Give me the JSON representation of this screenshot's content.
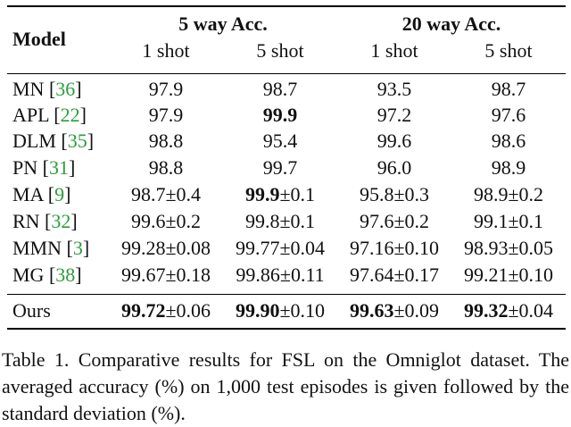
{
  "table": {
    "header": {
      "model": "Model",
      "groups": [
        "5 way Acc.",
        "20 way Acc."
      ],
      "shots": [
        "1 shot",
        "5 shot",
        "1 shot",
        "5 shot"
      ]
    },
    "rows": [
      {
        "model": [
          "MN [",
          "36",
          "]"
        ],
        "cells": [
          {
            "text": "97.9"
          },
          {
            "text": "98.7"
          },
          {
            "text": "93.5"
          },
          {
            "text": "98.7"
          }
        ]
      },
      {
        "model": [
          "APL [",
          "22",
          "]"
        ],
        "cells": [
          {
            "text": "97.9"
          },
          {
            "bold": "99.9"
          },
          {
            "text": "97.2"
          },
          {
            "text": "97.6"
          }
        ]
      },
      {
        "model": [
          "DLM [",
          "35",
          "]"
        ],
        "cells": [
          {
            "text": "98.8"
          },
          {
            "text": "95.4"
          },
          {
            "text": "99.6"
          },
          {
            "text": "98.6"
          }
        ]
      },
      {
        "model": [
          "PN [",
          "31",
          "]"
        ],
        "cells": [
          {
            "text": "98.8"
          },
          {
            "text": "99.7"
          },
          {
            "text": "96.0"
          },
          {
            "text": "98.9"
          }
        ]
      },
      {
        "model": [
          "MA [",
          "9",
          "]"
        ],
        "cells": [
          {
            "text": "98.7±0.4"
          },
          {
            "bold": "99.9",
            "text": "±0.1"
          },
          {
            "text": "95.8±0.3"
          },
          {
            "text": "98.9±0.2"
          }
        ]
      },
      {
        "model": [
          "RN [",
          "32",
          "]"
        ],
        "cells": [
          {
            "text": "99.6±0.2"
          },
          {
            "text": "99.8±0.1"
          },
          {
            "text": "97.6±0.2"
          },
          {
            "text": "99.1±0.1"
          }
        ]
      },
      {
        "model": [
          "MMN [",
          "3",
          "]"
        ],
        "cells": [
          {
            "text": "99.28±0.08"
          },
          {
            "text": "99.77±0.04"
          },
          {
            "text": "97.16±0.10"
          },
          {
            "text": "98.93±0.05"
          }
        ]
      },
      {
        "model": [
          "MG [",
          "38",
          "]"
        ],
        "cells": [
          {
            "text": "99.67±0.18"
          },
          {
            "text": "99.86±0.11"
          },
          {
            "text": "97.64±0.17"
          },
          {
            "text": "99.21±0.10"
          }
        ]
      },
      {
        "model": [
          "Ours"
        ],
        "cells": [
          {
            "bold": "99.72",
            "text": "±0.06"
          },
          {
            "bold": "99.90",
            "text": "±0.10"
          },
          {
            "bold": "99.63",
            "text": "±0.09"
          },
          {
            "bold": "99.32",
            "text": "±0.04"
          }
        ]
      }
    ]
  },
  "caption": "Table 1. Comparative results for FSL on the Omniglot dataset. The averaged accuracy (%) on 1,000 test episodes is given followed by the standard deviation (%)."
}
